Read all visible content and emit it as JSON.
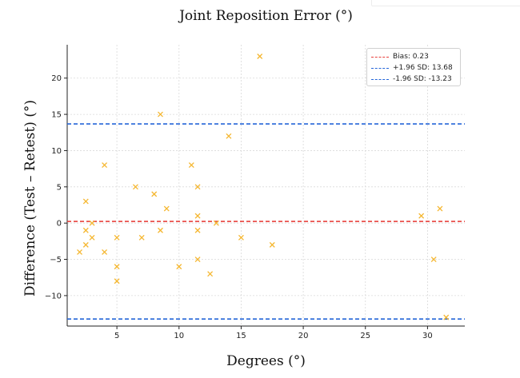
{
  "chart_data": {
    "type": "scatter",
    "title": "Joint Reposition Error (°)",
    "xlabel": "Degrees (°)",
    "ylabel": "Difference (Test – Retest) (°)",
    "xlim": [
      1,
      33
    ],
    "ylim": [
      -14.2,
      24.6
    ],
    "xticks": [
      5,
      10,
      15,
      20,
      25,
      30
    ],
    "yticks": [
      -10,
      -5,
      0,
      5,
      10,
      15,
      20
    ],
    "grid": true,
    "legend_position": "top-right",
    "marker": "x",
    "marker_color": "#f5b731",
    "points": [
      {
        "x": 2.0,
        "y": -4
      },
      {
        "x": 2.5,
        "y": 3
      },
      {
        "x": 2.5,
        "y": -1
      },
      {
        "x": 2.5,
        "y": -3
      },
      {
        "x": 3.0,
        "y": 0
      },
      {
        "x": 3.0,
        "y": -2
      },
      {
        "x": 4.0,
        "y": 8
      },
      {
        "x": 4.0,
        "y": -4
      },
      {
        "x": 5.0,
        "y": -2
      },
      {
        "x": 5.0,
        "y": -6
      },
      {
        "x": 5.0,
        "y": -8
      },
      {
        "x": 6.5,
        "y": 5
      },
      {
        "x": 7.0,
        "y": -2
      },
      {
        "x": 8.0,
        "y": 4
      },
      {
        "x": 8.5,
        "y": 15
      },
      {
        "x": 8.5,
        "y": -1
      },
      {
        "x": 9.0,
        "y": 2
      },
      {
        "x": 10.0,
        "y": -6
      },
      {
        "x": 11.0,
        "y": 8
      },
      {
        "x": 11.5,
        "y": 5
      },
      {
        "x": 11.5,
        "y": 1
      },
      {
        "x": 11.5,
        "y": -1
      },
      {
        "x": 11.5,
        "y": -5
      },
      {
        "x": 12.5,
        "y": -7
      },
      {
        "x": 13.0,
        "y": 0
      },
      {
        "x": 14.0,
        "y": 12
      },
      {
        "x": 15.0,
        "y": -2
      },
      {
        "x": 16.5,
        "y": 23
      },
      {
        "x": 17.5,
        "y": -3
      },
      {
        "x": 29.5,
        "y": 1
      },
      {
        "x": 30.5,
        "y": -5
      },
      {
        "x": 31.0,
        "y": 2
      },
      {
        "x": 31.5,
        "y": -13
      }
    ],
    "reference_lines": [
      {
        "label": "Bias: 0.23",
        "y": 0.23,
        "color": "#e8403c"
      },
      {
        "label": "+1.96 SD: 13.68",
        "y": 13.68,
        "color": "#2566d8"
      },
      {
        "label": "-1.96 SD: -13.23",
        "y": -13.23,
        "color": "#2566d8"
      }
    ]
  }
}
